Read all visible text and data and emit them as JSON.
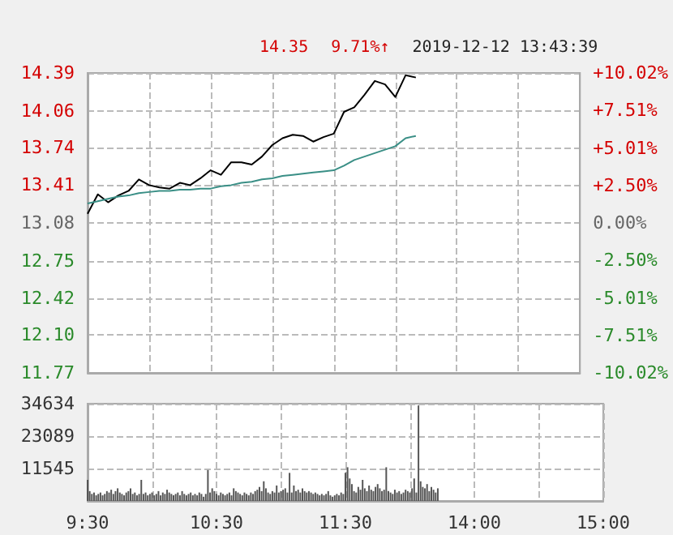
{
  "chart_data": [
    {
      "type": "line",
      "annotations": [
        "14.35",
        "9.71%↑",
        "2019-12-12 13:43:39"
      ],
      "categories": [
        null,
        null,
        null,
        null,
        null,
        null,
        null,
        null,
        null,
        null,
        null,
        null,
        null,
        null,
        null,
        null,
        null,
        null,
        null,
        null,
        null,
        null,
        null,
        null,
        null,
        null,
        null,
        null,
        null,
        null,
        null,
        null,
        null,
        null,
        null,
        null,
        null,
        null,
        null,
        null,
        null,
        null,
        null,
        null,
        null,
        null,
        null,
        null,
        null
      ],
      "ylim": [
        11.77,
        14.39
      ],
      "yticks": [
        11.77,
        {
          "value": 12.1,
          "label": "12.10"
        },
        12.42,
        12.75,
        13.08,
        13.41,
        13.74,
        14.06,
        14.39
      ],
      "y2lim": [
        -10.02,
        10.02
      ],
      "y2ticks": [
        {
          "value": -10.02,
          "label": "-10.02%"
        },
        {
          "value": -7.51,
          "label": "-7.51%"
        },
        {
          "value": -5.01,
          "label": "-5.01%"
        },
        {
          "value": -2.5,
          "label": "-2.50%"
        },
        {
          "value": 0,
          "label": "0.00%"
        },
        {
          "value": 2.5,
          "label": "+2.50%"
        },
        {
          "value": 5.01,
          "label": "+5.01%"
        },
        {
          "value": 7.51,
          "label": "+7.51%"
        },
        {
          "value": 10.02,
          "label": "+10.02%"
        }
      ],
      "grid": true,
      "tick_labels": "y",
      "line_style": "solid",
      "series": [
        {
          "color": "#000000",
          "values": [
            13.16,
            13.33,
            13.26,
            13.32,
            13.36,
            13.46,
            13.41,
            13.39,
            13.38,
            13.43,
            13.41,
            13.47,
            13.54,
            13.5,
            13.61,
            13.61,
            13.59,
            13.66,
            13.76,
            13.82,
            13.85,
            13.84,
            13.79,
            13.83,
            13.86,
            14.05,
            14.09,
            14.2,
            14.32,
            14.29,
            14.18,
            14.37,
            14.35,
            null,
            null,
            null,
            null,
            null,
            null,
            null,
            null,
            null,
            null,
            null,
            null,
            null,
            null,
            null,
            null
          ]
        },
        {
          "color": "#3a8f86",
          "values": [
            13.25,
            13.27,
            13.29,
            13.31,
            13.32,
            13.34,
            13.35,
            13.36,
            13.36,
            13.37,
            13.37,
            13.38,
            13.38,
            13.4,
            13.41,
            13.43,
            13.44,
            13.46,
            13.47,
            13.49,
            13.5,
            13.51,
            13.52,
            13.53,
            13.54,
            13.58,
            13.63,
            13.66,
            13.69,
            13.72,
            13.75,
            13.82,
            13.84,
            null,
            null,
            null,
            null,
            null,
            null,
            null,
            null,
            null,
            null,
            null,
            null,
            null,
            null,
            null,
            null
          ]
        }
      ]
    },
    {
      "type": "bar",
      "color": "#555555",
      "categories": [
        "9:30",
        null,
        null,
        null,
        null,
        null,
        null,
        null,
        null,
        null,
        null,
        null,
        null,
        null,
        null,
        null,
        null,
        null,
        null,
        null,
        null,
        null,
        null,
        null,
        null,
        null,
        null,
        null,
        null,
        null,
        null,
        null,
        null,
        null,
        null,
        null,
        null,
        null,
        null,
        null,
        null,
        null,
        null,
        null,
        null,
        null,
        null,
        null,
        null,
        null,
        null,
        null,
        null,
        null,
        null,
        null,
        null,
        null,
        null,
        null,
        "10:30",
        null,
        null,
        null,
        null,
        null,
        null,
        null,
        null,
        null,
        null,
        null,
        null,
        null,
        null,
        null,
        null,
        null,
        null,
        null,
        null,
        null,
        null,
        null,
        null,
        null,
        null,
        null,
        null,
        null,
        null,
        null,
        null,
        null,
        null,
        null,
        null,
        null,
        null,
        null,
        null,
        null,
        null,
        null,
        null,
        null,
        null,
        null,
        null,
        null,
        null,
        null,
        null,
        null,
        null,
        null,
        null,
        null,
        null,
        null,
        "11:30",
        null,
        null,
        null,
        null,
        null,
        null,
        null,
        null,
        null,
        null,
        null,
        null,
        null,
        null,
        null,
        null,
        null,
        null,
        null,
        null,
        null,
        null,
        null,
        null,
        null,
        null,
        null,
        null,
        null,
        null,
        null,
        null,
        null,
        null,
        null,
        null,
        null,
        null,
        null,
        null,
        null,
        null,
        null,
        null,
        null,
        null,
        null,
        null,
        null,
        null,
        null,
        null,
        null,
        null,
        null,
        null,
        null,
        null,
        null,
        "14:00",
        null,
        null,
        null,
        null,
        null,
        null,
        null,
        null,
        null,
        null,
        null,
        null,
        null,
        null,
        null,
        null,
        null,
        null,
        null,
        null,
        null,
        null,
        null,
        null,
        null,
        null,
        null,
        null,
        null,
        null,
        null,
        null,
        null,
        null,
        null,
        null,
        null,
        null,
        null,
        null,
        null,
        null,
        null,
        null,
        null,
        null,
        null,
        null,
        null,
        null,
        null,
        null,
        null,
        null,
        null,
        null,
        null,
        null,
        null,
        "15:00"
      ],
      "values": [
        7500,
        3500,
        2500,
        3000,
        2000,
        2500,
        3000,
        2000,
        2500,
        3500,
        3000,
        4000,
        2500,
        3500,
        4500,
        3000,
        2500,
        2000,
        3000,
        3500,
        4500,
        2500,
        3000,
        2000,
        2500,
        7500,
        2500,
        3000,
        2000,
        2500,
        3000,
        2000,
        2500,
        3500,
        2000,
        3000,
        2500,
        4000,
        3000,
        2500,
        2000,
        2500,
        3000,
        2000,
        3500,
        2500,
        2000,
        2500,
        3000,
        2000,
        2500,
        2000,
        3000,
        2500,
        1500,
        2500,
        11000,
        3000,
        4500,
        3500,
        2500,
        2000,
        3000,
        2500,
        2000,
        2500,
        3000,
        2000,
        4500,
        3500,
        3000,
        2500,
        2000,
        3000,
        2500,
        2000,
        3000,
        2500,
        3500,
        4000,
        5000,
        3500,
        7000,
        4500,
        3000,
        2500,
        3500,
        3000,
        5500,
        3000,
        3500,
        4000,
        4500,
        3000,
        10000,
        3000,
        5500,
        3500,
        4000,
        3000,
        4500,
        3500,
        3000,
        3500,
        3000,
        2500,
        3000,
        2500,
        2000,
        2500,
        2000,
        2500,
        3500,
        2000,
        1500,
        2000,
        2500,
        2000,
        3000,
        2500,
        10000,
        12000,
        8000,
        6000,
        3500,
        3000,
        5000,
        4000,
        7500,
        4500,
        3500,
        5500,
        4000,
        3500,
        5000,
        6000,
        4500,
        3500,
        4000,
        12000,
        3500,
        3000,
        2500,
        4000,
        3000,
        3500,
        2500,
        3000,
        4000,
        3500,
        3000,
        4500,
        8000,
        3000,
        34000,
        7000,
        5000,
        4500,
        6000,
        3500,
        5000,
        4000,
        3000,
        4500,
        null,
        null,
        null,
        null,
        null,
        null,
        null,
        null,
        null,
        null,
        null,
        null,
        null,
        null,
        null,
        null,
        null,
        null,
        null,
        null,
        null,
        null,
        null,
        null,
        null,
        null,
        null,
        null,
        null,
        null,
        null,
        null,
        null,
        null,
        null,
        null,
        null,
        null,
        null,
        null,
        null,
        null,
        null,
        null,
        null,
        null,
        null,
        null,
        null,
        null,
        null,
        null,
        null,
        null,
        null,
        null,
        null,
        null,
        null,
        null,
        null,
        null,
        null,
        null,
        null,
        null,
        null,
        null,
        null,
        null,
        null,
        null,
        null,
        null,
        null,
        null,
        null
      ],
      "ylim": [
        0,
        34634
      ],
      "yticks": [
        {
          "value": 0,
          "label": null
        },
        11545,
        23089,
        34634
      ],
      "grid": true
    }
  ]
}
